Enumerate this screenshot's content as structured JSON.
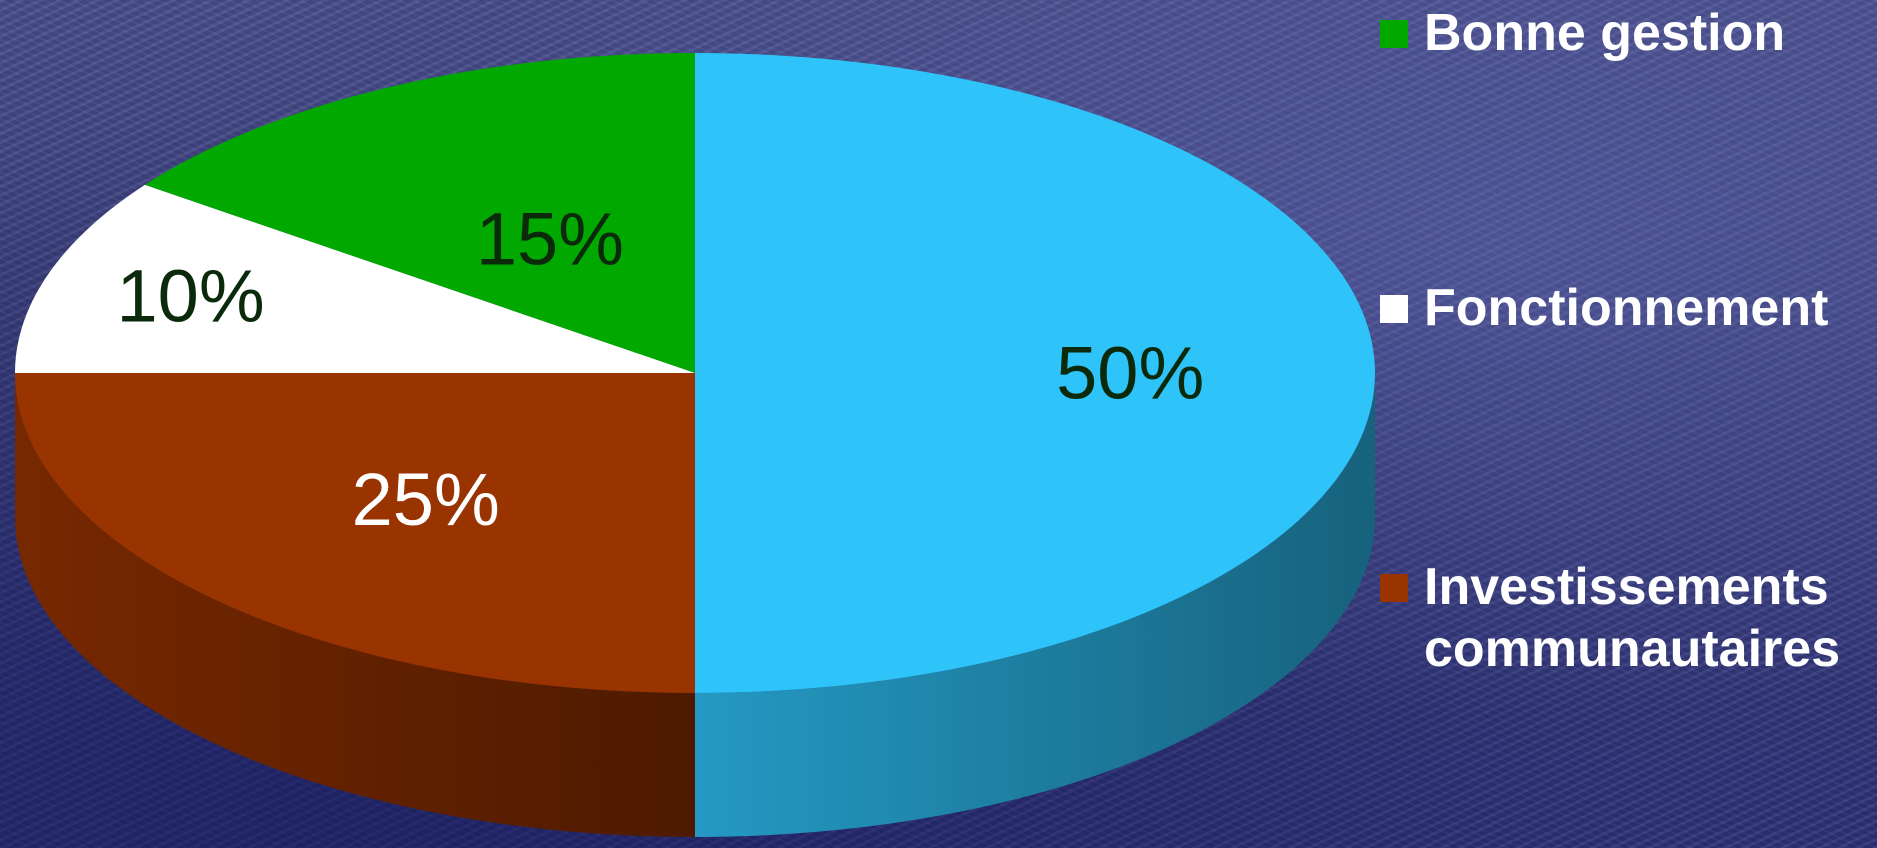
{
  "chart_data": {
    "type": "pie",
    "three_d": true,
    "title": "",
    "categories": [
      "Bonne gestion",
      "Fonctionnement",
      "Investissements\ncommunautaires",
      ""
    ],
    "values": [
      15,
      10,
      25,
      50
    ],
    "labels": [
      "15%",
      "10%",
      "25%",
      "50%"
    ],
    "colors": [
      "#00a800",
      "#ffffff",
      "#993300",
      "#2ec4fa"
    ],
    "label_colors": [
      "#0b2a0b",
      "#0b2a0b",
      "#ffffff",
      "#0b2a0b"
    ],
    "start_angle_deg": 0,
    "direction": "counterclockwise",
    "legend": {
      "position": "right",
      "entries": [
        {
          "label": "Bonne gestion",
          "color": "#00a800"
        },
        {
          "label": "Fonctionnement",
          "color": "#ffffff"
        },
        {
          "label": "Investissements\ncommunautaires",
          "color": "#993300"
        }
      ]
    }
  }
}
